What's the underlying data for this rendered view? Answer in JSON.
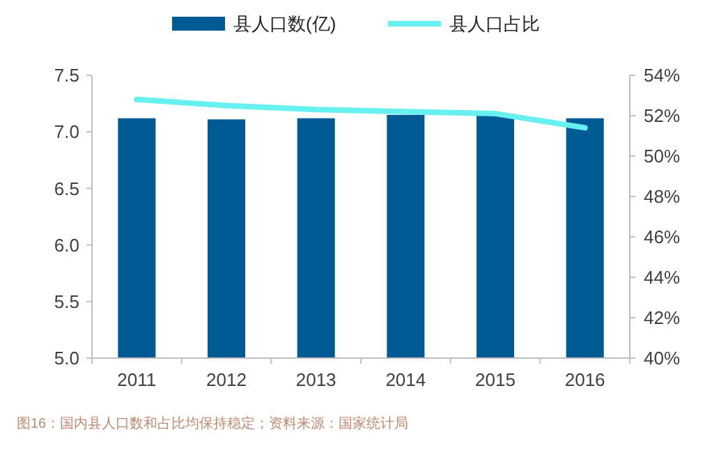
{
  "chart_data": {
    "type": "bar",
    "categories": [
      "2011",
      "2012",
      "2013",
      "2014",
      "2015",
      "2016"
    ],
    "series": [
      {
        "name": "县人口数(亿)",
        "color": "#005b94",
        "values": [
          7.12,
          7.11,
          7.12,
          7.15,
          7.16,
          7.12
        ]
      },
      {
        "name": "县人口占比",
        "type": "line",
        "axis": "y2",
        "color": "#66f0f0",
        "values": [
          52.8,
          52.5,
          52.3,
          52.2,
          52.1,
          51.4
        ]
      }
    ],
    "ylim": [
      5.0,
      7.5
    ],
    "yticks": [
      {
        "value": 5,
        "label": "5.0"
      },
      {
        "value": 5.5,
        "label": "5.5"
      },
      {
        "value": 6,
        "label": "6.0"
      },
      {
        "value": 6.5,
        "label": "6.5"
      },
      {
        "value": 7,
        "label": "7.0"
      },
      {
        "value": 7.5,
        "label": "7.5"
      }
    ],
    "y2lim": [
      40,
      54
    ],
    "y2ticks": [
      {
        "value": 40,
        "label": "40%"
      },
      {
        "value": 42,
        "label": "42%"
      },
      {
        "value": 44,
        "label": "44%"
      },
      {
        "value": 46,
        "label": "46%"
      },
      {
        "value": 48,
        "label": "48%"
      },
      {
        "value": 50,
        "label": "50%"
      },
      {
        "value": 52,
        "label": "52%"
      },
      {
        "value": 54,
        "label": "54%"
      }
    ],
    "legend": "top",
    "marker": "none",
    "annotations": [
      "图16：国内县人口数和占比均保持稳定；资料来源：国家统计局"
    ]
  }
}
